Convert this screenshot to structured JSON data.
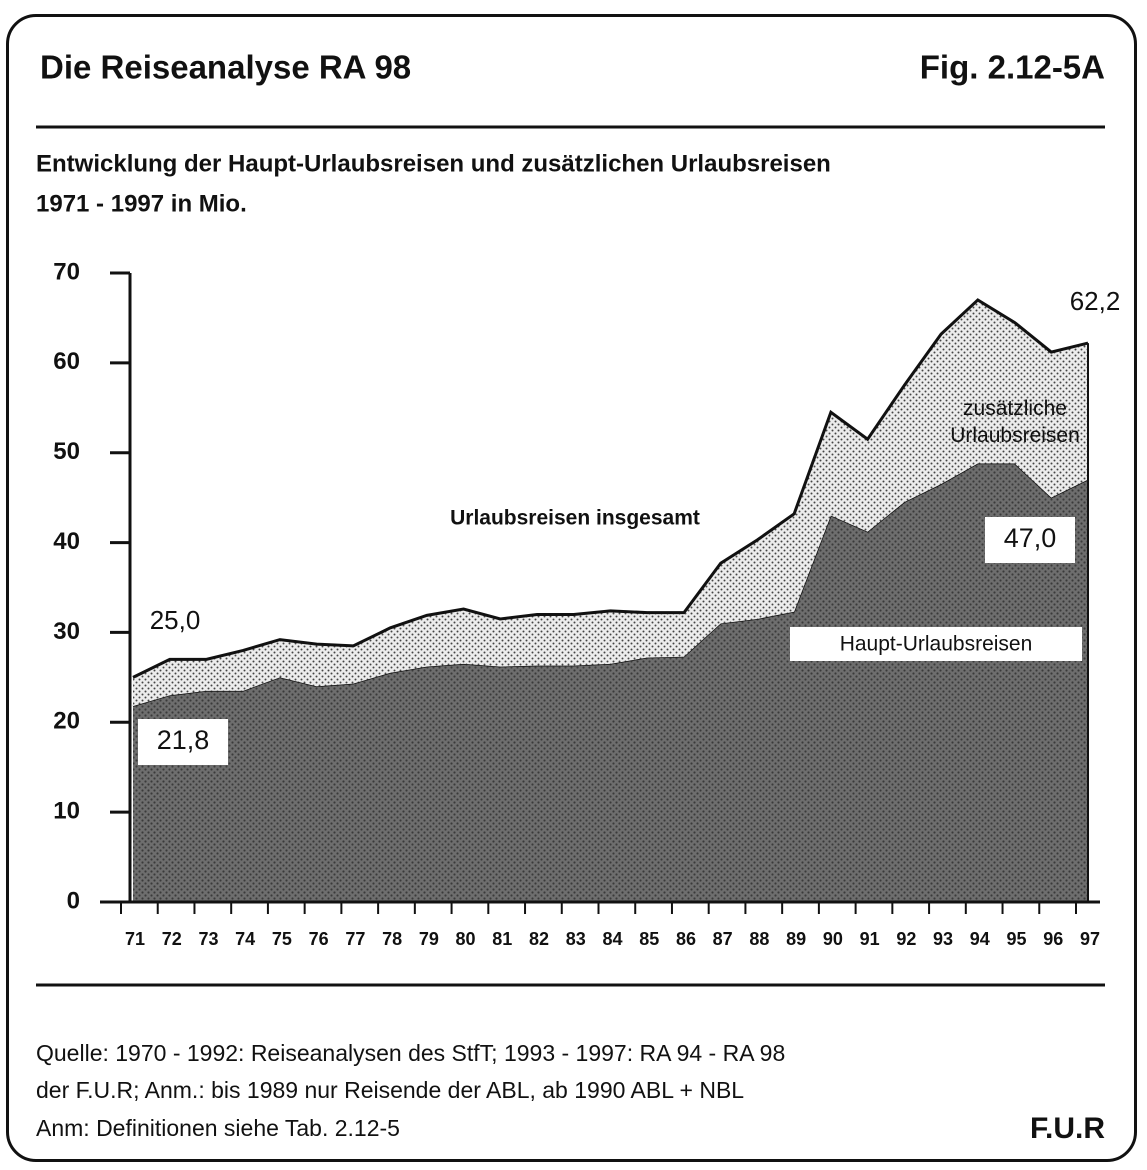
{
  "header": {
    "title": "Die Reiseanalyse  RA 98",
    "figure": "Fig. 2.12-5A"
  },
  "chart_data": {
    "type": "stacked_area",
    "title": "Entwicklung der  Haupt-Urlaubsreisen und zusätzlichen Urlaubsreisen",
    "subtitle": "1971 - 1997  in Mio.",
    "categories": [
      "71",
      "72",
      "73",
      "74",
      "75",
      "76",
      "77",
      "78",
      "79",
      "80",
      "81",
      "82",
      "83",
      "84",
      "85",
      "86",
      "87",
      "88",
      "89",
      "90",
      "91",
      "92",
      "93",
      "94",
      "95",
      "96",
      "97"
    ],
    "series": [
      {
        "name": "Haupt-Urlaubsreisen",
        "color": "#6e6e6e",
        "values": [
          21.8,
          23.0,
          23.5,
          23.5,
          25.0,
          24.0,
          24.3,
          25.5,
          26.2,
          26.5,
          26.2,
          26.3,
          26.3,
          26.5,
          27.2,
          27.3,
          31.0,
          31.5,
          32.3,
          43.0,
          41.2,
          44.5,
          46.5,
          48.8,
          48.8,
          45.0,
          47.0
        ],
        "value_labels": [
          "21,8",
          null,
          null,
          null,
          null,
          null,
          null,
          null,
          null,
          null,
          null,
          null,
          null,
          null,
          null,
          null,
          null,
          null,
          null,
          null,
          null,
          null,
          null,
          null,
          null,
          null,
          "47,0"
        ]
      },
      {
        "name": "zusätzliche Urlaubsreisen",
        "color": "#ececec",
        "values": [
          3.2,
          4.0,
          3.5,
          4.5,
          4.2,
          4.7,
          4.2,
          5.0,
          5.7,
          6.1,
          5.3,
          5.7,
          5.7,
          5.9,
          5.0,
          4.9,
          6.7,
          8.8,
          10.9,
          11.5,
          10.3,
          13.0,
          16.7,
          18.2,
          15.7,
          16.2,
          15.2
        ]
      }
    ],
    "total_label": "Urlaubsreisen insgesamt",
    "total_annotations": [
      {
        "value": 25.0,
        "label": "25,0"
      },
      {
        "value": 62.2,
        "label": "62,2"
      }
    ],
    "ylim": [
      0,
      70
    ],
    "yticks": [
      0,
      10,
      20,
      30,
      40,
      50,
      60,
      70
    ]
  },
  "footer": {
    "lines": [
      "Quelle: 1970 - 1992: Reiseanalysen des StfT; 1993 - 1997: RA 94 - RA 98",
      "der F.U.R;  Anm.:  bis 1989 nur Reisende der ABL, ab 1990 ABL + NBL",
      "Anm: Definitionen siehe Tab. 2.12-5"
    ],
    "brand": "F.U.R"
  }
}
